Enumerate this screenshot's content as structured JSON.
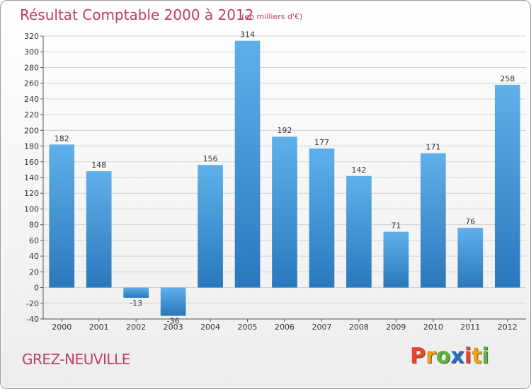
{
  "chart_data": {
    "type": "bar",
    "title": "Résultat Comptable 2000 à 2012",
    "subtitle": "(en milliers d'€)",
    "xlabel": "",
    "ylabel": "",
    "categories": [
      "2000",
      "2001",
      "2002",
      "2003",
      "2004",
      "2005",
      "2006",
      "2007",
      "2008",
      "2009",
      "2010",
      "2011",
      "2012"
    ],
    "values": [
      182,
      148,
      -13,
      -36,
      156,
      314,
      192,
      177,
      142,
      71,
      171,
      76,
      258
    ],
    "value_labels": [
      "182",
      "148",
      "-13",
      "-36",
      "156",
      "314",
      "192",
      "177",
      "142",
      "71",
      "171",
      "76",
      "258"
    ],
    "ylim": [
      -40,
      320
    ],
    "yticks": [
      -40,
      -20,
      0,
      20,
      40,
      60,
      80,
      100,
      120,
      140,
      160,
      180,
      200,
      220,
      240,
      260,
      280,
      300,
      320
    ],
    "grid": true,
    "legend": "none",
    "colors": {
      "bar_top": "#5fb0ea",
      "bar_bottom": "#2a78bd",
      "grid": "#d2d2d2",
      "title": "#c23a6c"
    }
  },
  "commune": "GREZ-NEUVILLE",
  "brand": {
    "letters": [
      "P",
      "r",
      "o",
      "x",
      "i",
      "t",
      "i"
    ],
    "colors": [
      "#e9452b",
      "#f5a016",
      "#5fb53a",
      "#1c6fc4",
      "#e9452b",
      "#f5a016",
      "#5fb53a"
    ]
  }
}
